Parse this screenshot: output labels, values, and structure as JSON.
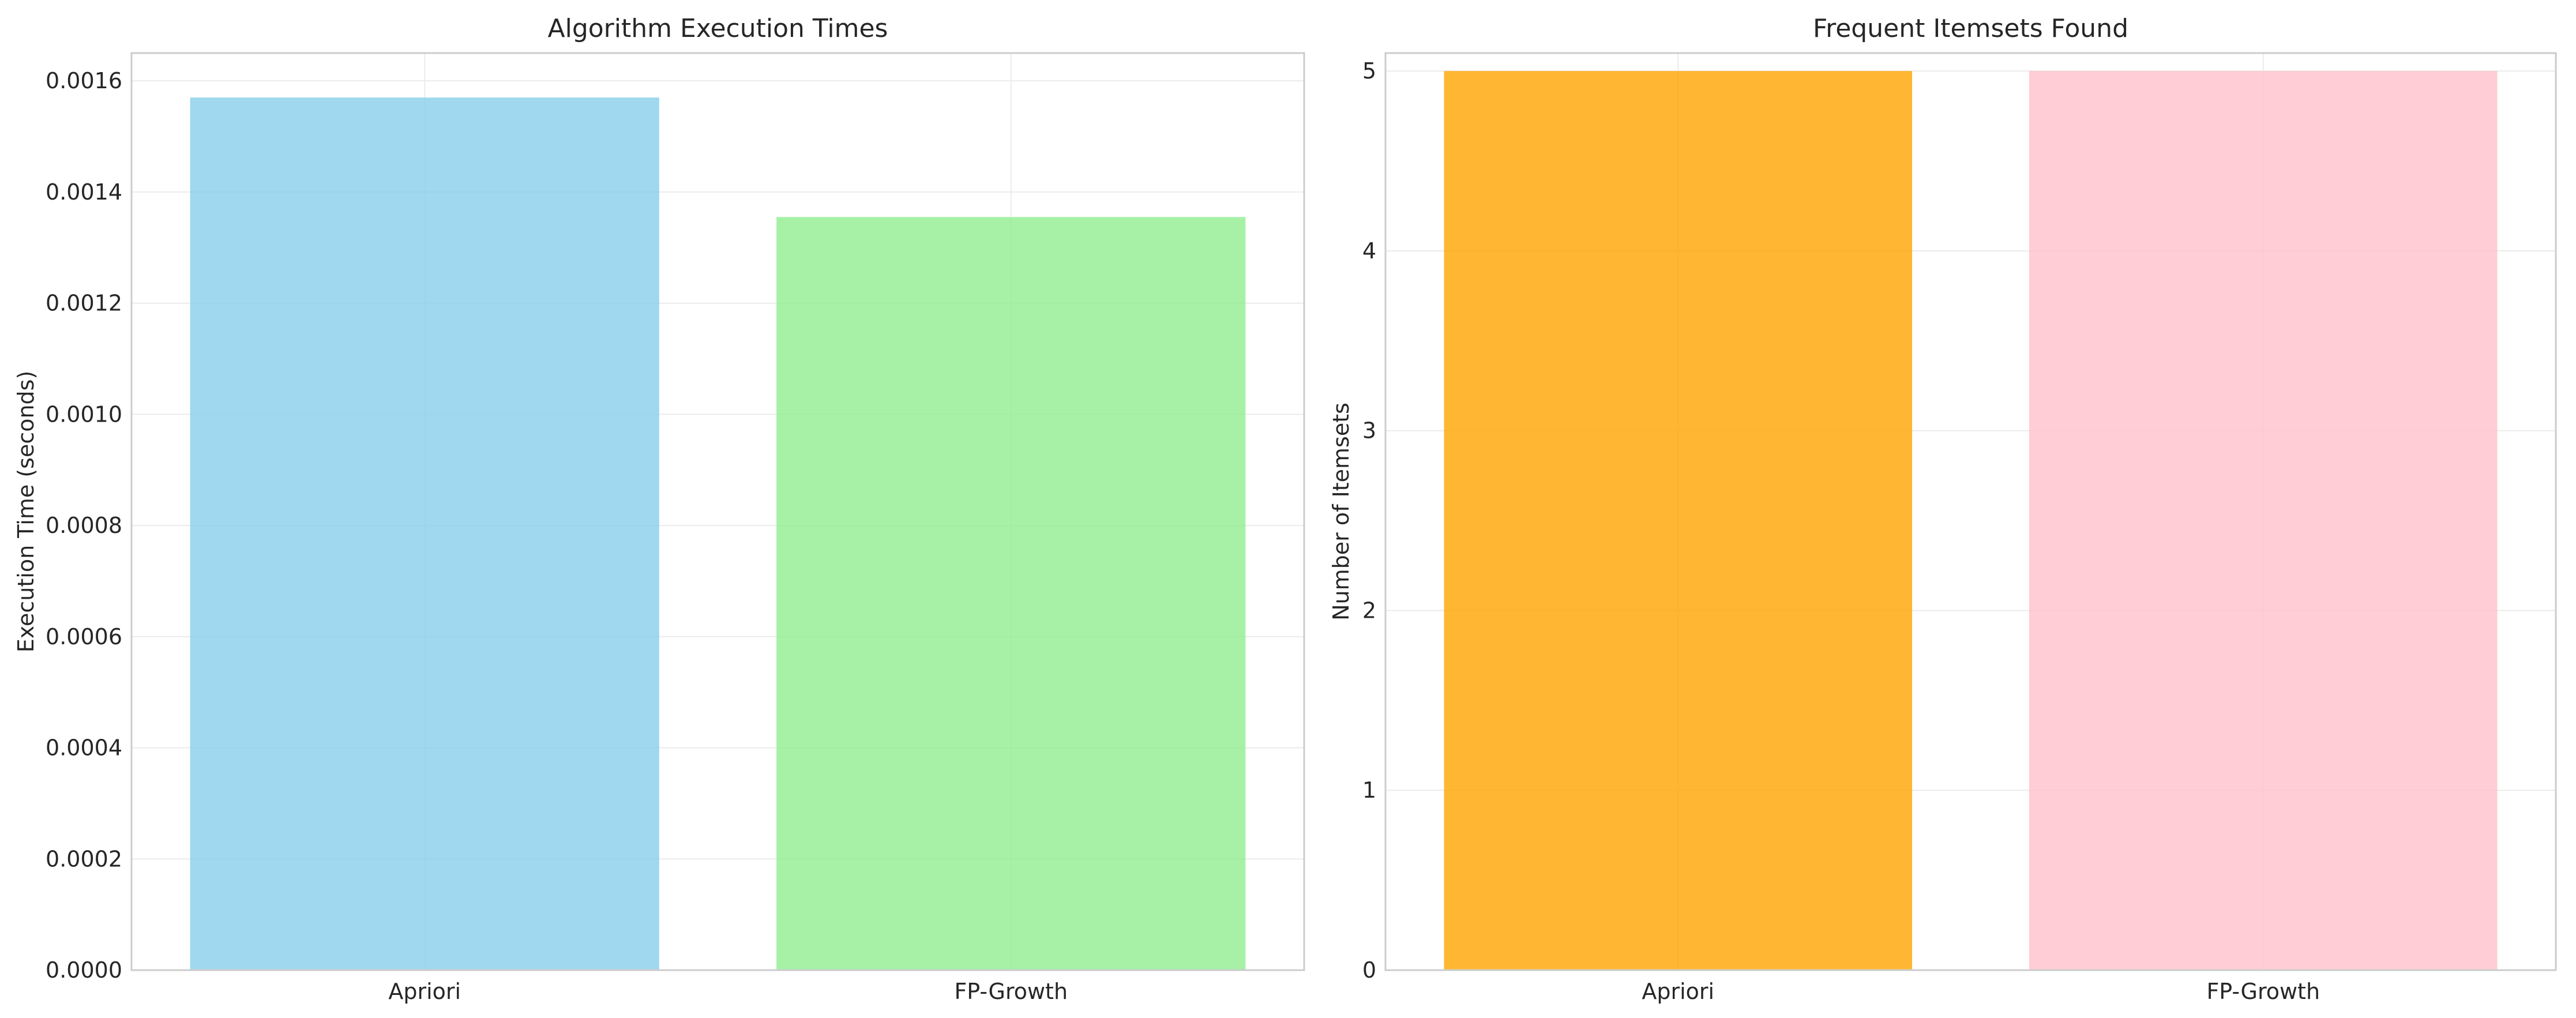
{
  "chart_data": [
    {
      "type": "bar",
      "title": "Algorithm Execution Times",
      "xlabel": "",
      "ylabel": "Execution Time (seconds)",
      "categories": [
        "Apriori",
        "FP-Growth"
      ],
      "values": [
        0.00157,
        0.001355
      ],
      "colors": [
        "#87CEEB",
        "#90EE90"
      ],
      "ylim": [
        0,
        0.00165
      ],
      "yticks": [
        "0.0000",
        "0.0002",
        "0.0004",
        "0.0006",
        "0.0008",
        "0.0010",
        "0.0012",
        "0.0014",
        "0.0016"
      ],
      "ytick_values": [
        0,
        0.0002,
        0.0004,
        0.0006,
        0.0008,
        0.001,
        0.0012,
        0.0014,
        0.0016
      ],
      "grid": true
    },
    {
      "type": "bar",
      "title": "Frequent Itemsets Found",
      "xlabel": "",
      "ylabel": "Number of Itemsets",
      "categories": [
        "Apriori",
        "FP-Growth"
      ],
      "values": [
        5,
        5
      ],
      "colors": [
        "#FFA500",
        "#FFC0CB"
      ],
      "ylim": [
        0,
        5.1
      ],
      "yticks": [
        "0",
        "1",
        "2",
        "3",
        "4",
        "5"
      ],
      "ytick_values": [
        0,
        1,
        2,
        3,
        4,
        5
      ],
      "grid": true
    }
  ]
}
